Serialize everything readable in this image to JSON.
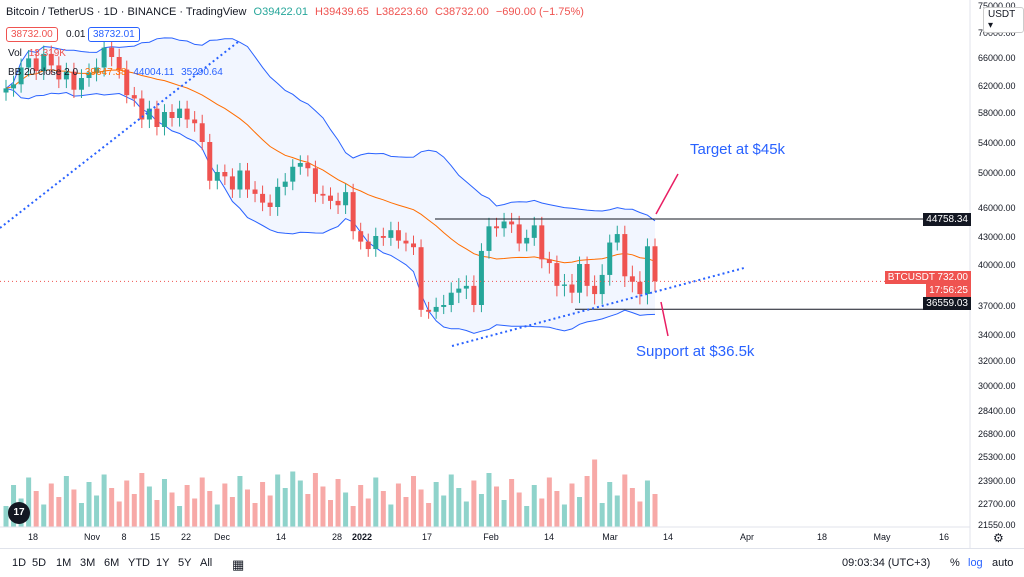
{
  "header": {
    "symbol": "Bitcoin / TetherUS · 1D · BINANCE · TradingView",
    "o": "O39422.01",
    "h": "H39439.65",
    "l": "L38223.60",
    "c": "C38732.00",
    "chg": "−690.00 (−1.75%)",
    "sell_price": "38732.00",
    "spread": "0.01",
    "buy_price": "38732.01",
    "vol_label": "Vol",
    "vol_value": "13.319K",
    "bb_label": "BB 20 close 2 0",
    "bb_mid": "39647.38",
    "bb_up": "44004.11",
    "bb_low": "35290.64"
  },
  "currency": "USDT",
  "annotations": {
    "target": "Target at $45k",
    "support": "Support at $36.5k"
  },
  "price_tags": {
    "target": "44758.34",
    "current_label": "BTCUSDT",
    "current": "38732.00",
    "countdown": "17:56:25",
    "support": "36559.03"
  },
  "bottom": {
    "timeframes": [
      "1D",
      "5D",
      "1M",
      "3M",
      "6M",
      "YTD",
      "1Y",
      "5Y",
      "All"
    ],
    "clock": "09:03:34 (UTC+3)",
    "pct": "%",
    "log": "log",
    "auto": "auto"
  },
  "colors": {
    "up": "#26a69a",
    "down": "#ef5350",
    "bb": "#2962ff",
    "basis": "#ff6d00",
    "line": "#131722",
    "anno": "#2962ff"
  },
  "chart_data": {
    "type": "candlestick",
    "yaxis_ticks": [
      75000,
      70000,
      66000,
      62000,
      58000,
      54000,
      50000,
      46000,
      43000,
      40000,
      37000,
      34000,
      32000,
      30000,
      28400,
      26800,
      25300,
      23900,
      22700,
      21550
    ],
    "xaxis_ticks": [
      "18",
      "Nov",
      "8",
      "15",
      "22",
      "Dec",
      "14",
      "28",
      "2022",
      "17",
      "Feb",
      "14",
      "Mar",
      "14",
      "Apr",
      "18",
      "May",
      "16"
    ],
    "target_level": 44758.34,
    "support_level": 36559.03,
    "last_price": 38732.0,
    "series": [
      {
        "name": "BTCUSDT",
        "values": [
          61500,
          62100,
          64500,
          65800,
          64000,
          66500,
          64800,
          62800,
          63900,
          61300,
          63000,
          63800,
          64500,
          67500,
          66000,
          64200,
          60500,
          60000,
          57000,
          58500,
          56000,
          58000,
          57200,
          58500,
          57000,
          56500,
          54000,
          49000,
          50000,
          49500,
          48000,
          50200,
          48000,
          47500,
          46500,
          46000,
          48300,
          48900,
          50700,
          51200,
          50500,
          47500,
          47300,
          46700,
          46200,
          47700,
          43500,
          42400,
          41600,
          43000,
          42800,
          43600,
          42500,
          42200,
          41800,
          36500,
          36300,
          36800,
          37000,
          37900,
          38200,
          38400,
          37000,
          41400,
          44000,
          43800,
          44500,
          44200,
          42200,
          42800,
          44100,
          40500,
          40100,
          38400,
          38500,
          37900,
          40000,
          38400,
          37800,
          39200,
          42300,
          43200,
          39100,
          38700,
          37800,
          41900,
          38732
        ]
      }
    ]
  }
}
